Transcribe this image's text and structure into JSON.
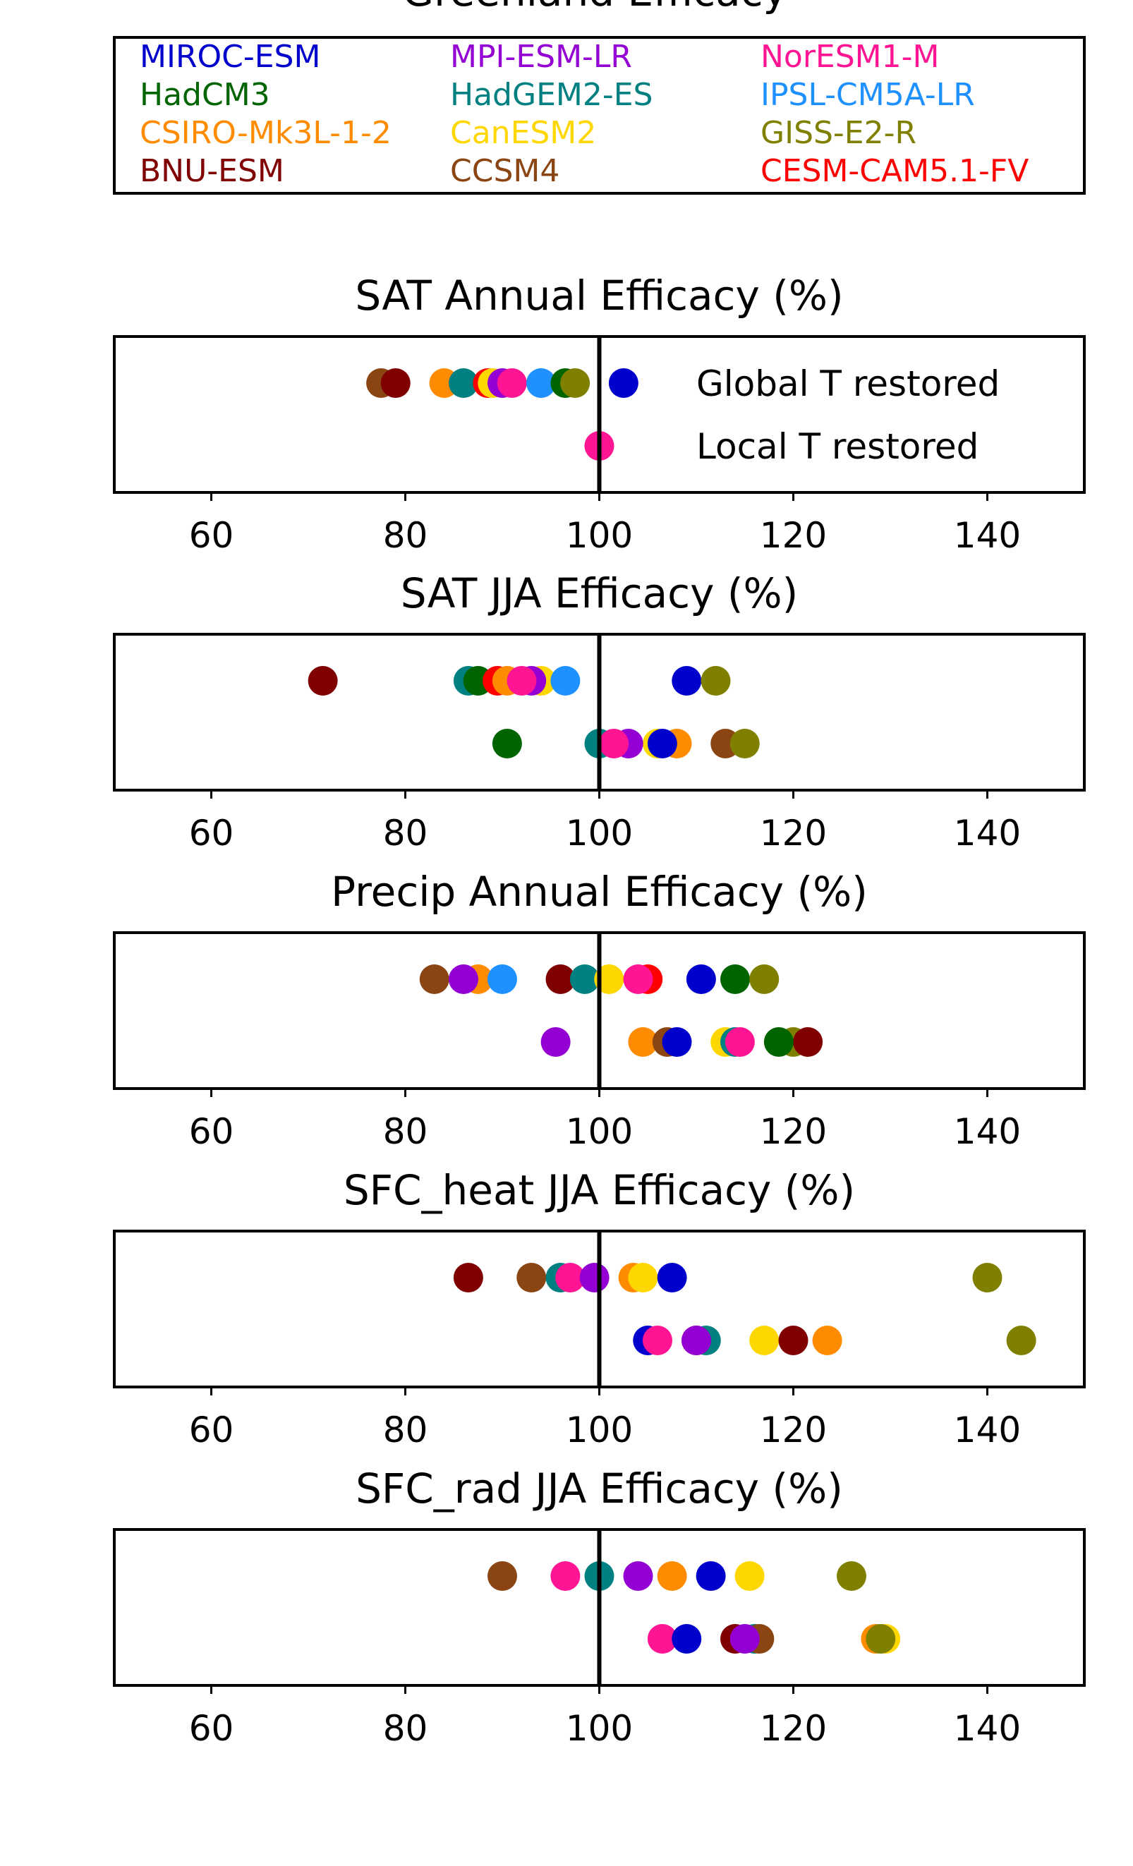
{
  "figure_title": "Greenland Efficacy",
  "models": [
    {
      "name": "MIROC-ESM",
      "color": "#0000cd"
    },
    {
      "name": "MPI-ESM-LR",
      "color": "#9400d3"
    },
    {
      "name": "NorESM1-M",
      "color": "#ff1493"
    },
    {
      "name": "HadCM3",
      "color": "#006400"
    },
    {
      "name": "HadGEM2-ES",
      "color": "#008080"
    },
    {
      "name": "IPSL-CM5A-LR",
      "color": "#1e90ff"
    },
    {
      "name": "CSIRO-Mk3L-1-2",
      "color": "#ff8c00"
    },
    {
      "name": "CanESM2",
      "color": "#ffd700"
    },
    {
      "name": "GISS-E2-R",
      "color": "#808000"
    },
    {
      "name": "BNU-ESM",
      "color": "#800000"
    },
    {
      "name": "CCSM4",
      "color": "#8b4513"
    },
    {
      "name": "CESM-CAM5.1-FV",
      "color": "#ff0000"
    }
  ],
  "row_labels": {
    "global": "Global T restored",
    "local": "Local T restored"
  },
  "chart_data": [
    {
      "type": "scatter",
      "title": "SAT Annual Efficacy (%)",
      "xlim": [
        50,
        150
      ],
      "xticks": [
        60,
        80,
        100,
        120,
        140
      ],
      "reference_line": 100,
      "show_row_labels": true,
      "global": {
        "CCSM4": 77.5,
        "BNU-ESM": 79,
        "CSIRO-Mk3L-1-2": 84,
        "HadGEM2-ES": 86,
        "CESM-CAM5.1-FV": 88.5,
        "CanESM2": 89,
        "MPI-ESM-LR": 90,
        "NorESM1-M": 91,
        "IPSL-CM5A-LR": 94,
        "HadCM3": 96.5,
        "GISS-E2-R": 97.5,
        "MIROC-ESM": 102.5
      },
      "local": {
        "NorESM1-M": 100
      }
    },
    {
      "type": "scatter",
      "title": "SAT JJA Efficacy (%)",
      "xlim": [
        50,
        150
      ],
      "xticks": [
        60,
        80,
        100,
        120,
        140
      ],
      "reference_line": 100,
      "show_row_labels": false,
      "global": {
        "BNU-ESM": 71.5,
        "HadGEM2-ES": 86.5,
        "HadCM3": 87.5,
        "CESM-CAM5.1-FV": 89.5,
        "CSIRO-Mk3L-1-2": 90.5,
        "CanESM2": 94,
        "MPI-ESM-LR": 93,
        "NorESM1-M": 92,
        "IPSL-CM5A-LR": 96.5,
        "MIROC-ESM": 109,
        "GISS-E2-R": 112
      },
      "local": {
        "HadCM3": 90.5,
        "HadGEM2-ES": 100,
        "CanESM2": 106,
        "CSIRO-Mk3L-1-2": 108,
        "MPI-ESM-LR": 103,
        "NorESM1-M": 101.5,
        "MIROC-ESM": 106.5,
        "CCSM4": 113,
        "GISS-E2-R": 115
      }
    },
    {
      "type": "scatter",
      "title": "Precip Annual Efficacy (%)",
      "xlim": [
        50,
        150
      ],
      "xticks": [
        60,
        80,
        100,
        120,
        140
      ],
      "reference_line": 100,
      "show_row_labels": false,
      "global": {
        "CCSM4": 83,
        "CSIRO-Mk3L-1-2": 87.5,
        "MPI-ESM-LR": 86,
        "IPSL-CM5A-LR": 90,
        "BNU-ESM": 96,
        "HadGEM2-ES": 98.5,
        "CanESM2": 101,
        "CESM-CAM5.1-FV": 105,
        "NorESM1-M": 104,
        "MIROC-ESM": 110.5,
        "HadCM3": 114,
        "GISS-E2-R": 117
      },
      "local": {
        "MPI-ESM-LR": 95.5,
        "CSIRO-Mk3L-1-2": 104.5,
        "CCSM4": 107,
        "MIROC-ESM": 108,
        "CanESM2": 113,
        "HadGEM2-ES": 114,
        "NorESM1-M": 114.5,
        "GISS-E2-R": 120,
        "BNU-ESM": 121.5,
        "HadCM3": 118.5
      }
    },
    {
      "type": "scatter",
      "title": "SFC_heat JJA Efficacy (%)",
      "xlim": [
        50,
        150
      ],
      "xticks": [
        60,
        80,
        100,
        120,
        140
      ],
      "reference_line": 100,
      "show_row_labels": false,
      "global": {
        "BNU-ESM": 86.5,
        "CCSM4": 93,
        "HadGEM2-ES": 96,
        "NorESM1-M": 97,
        "MPI-ESM-LR": 99.5,
        "CSIRO-Mk3L-1-2": 103.5,
        "CanESM2": 104.5,
        "MIROC-ESM": 107.5,
        "GISS-E2-R": 140
      },
      "local": {
        "MIROC-ESM": 105,
        "NorESM1-M": 106,
        "HadGEM2-ES": 111,
        "CCSM4": 110,
        "MPI-ESM-LR": 110,
        "CanESM2": 117,
        "BNU-ESM": 120,
        "CSIRO-Mk3L-1-2": 123.5,
        "GISS-E2-R": 143.5
      }
    },
    {
      "type": "scatter",
      "title": "SFC_rad JJA Efficacy (%)",
      "xlim": [
        50,
        150
      ],
      "xticks": [
        60,
        80,
        100,
        120,
        140
      ],
      "reference_line": 100,
      "show_row_labels": false,
      "global": {
        "CCSM4": 90,
        "NorESM1-M": 96.5,
        "HadGEM2-ES": 100,
        "MPI-ESM-LR": 104,
        "CSIRO-Mk3L-1-2": 107.5,
        "MIROC-ESM": 111.5,
        "CanESM2": 115.5,
        "GISS-E2-R": 126
      },
      "local": {
        "NorESM1-M": 106.5,
        "MIROC-ESM": 109,
        "BNU-ESM": 114,
        "HadGEM2-ES": 116,
        "CCSM4": 116.5,
        "MPI-ESM-LR": 115,
        "CanESM2": 129.5,
        "CSIRO-Mk3L-1-2": 128.5,
        "GISS-E2-R": 129
      }
    }
  ]
}
